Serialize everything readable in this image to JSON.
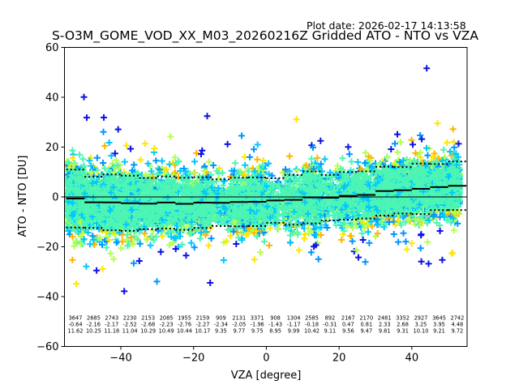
{
  "chart_data": {
    "type": "scatter",
    "title": "S-O3M_GOME_VOD_XX_M03_20260216Z Gridded ATO - NTO vs VZA",
    "plot_date": "Plot date: 2026-02-17 14:13:58",
    "xlabel": "VZA [degree]",
    "ylabel": "ATO - NTO [DU]",
    "xlim": [
      -55.5,
      55.2
    ],
    "ylim": [
      -60,
      60
    ],
    "xticks": [
      -40,
      -20,
      0,
      20,
      40
    ],
    "xtick_labels": [
      "−40",
      "−20",
      "0",
      "20",
      "40"
    ],
    "yticks": [
      60,
      40,
      20,
      0,
      -20,
      -40,
      -60
    ],
    "ytick_labels": [
      "60",
      "40",
      "20",
      "0",
      "−20",
      "−40",
      "−60"
    ],
    "grid": false,
    "marker": "plus",
    "colors": [
      "#0a14e6",
      "#0096ff",
      "#00c8ff",
      "#4cf5b4",
      "#b4ff50",
      "#ffe600",
      "#ffb400"
    ],
    "bins": {
      "edges": [
        -55,
        -50,
        -45,
        -40,
        -35,
        -30,
        -25,
        -20,
        -15,
        -10,
        -5,
        0,
        5,
        10,
        15,
        20,
        25,
        30,
        35,
        40,
        45,
        50,
        55
      ],
      "counts": [
        "3647",
        "2685",
        "2743",
        "2230",
        "2153",
        "2085",
        "1955",
        "2159",
        "909",
        "2131",
        "3371",
        "908",
        "1304",
        "2585",
        "892",
        "2167",
        "2170",
        "2481",
        "3352",
        "2927",
        "3645",
        "2742"
      ],
      "means": [
        "-0.64",
        "-2.16",
        "-2.17",
        "-2.52",
        "-2.68",
        "-2.23",
        "-2.76",
        "-2.27",
        "-2.34",
        "-2.05",
        "-1.96",
        "-1.43",
        "-1.17",
        "-0.18",
        "-0.31",
        "0.47",
        "0.81",
        "2.33",
        "2.68",
        "3.25",
        "3.95",
        "4.48"
      ],
      "stds": [
        "11.62",
        "10.25",
        "11.18",
        "11.04",
        "10.29",
        "10.49",
        "10.44",
        "10.17",
        "9.35",
        "9.77",
        "9.75",
        "8.95",
        "9.99",
        "10.42",
        "9.11",
        "9.56",
        "9.47",
        "9.81",
        "9.31",
        "10.10",
        "9.21",
        "9.72"
      ]
    }
  }
}
